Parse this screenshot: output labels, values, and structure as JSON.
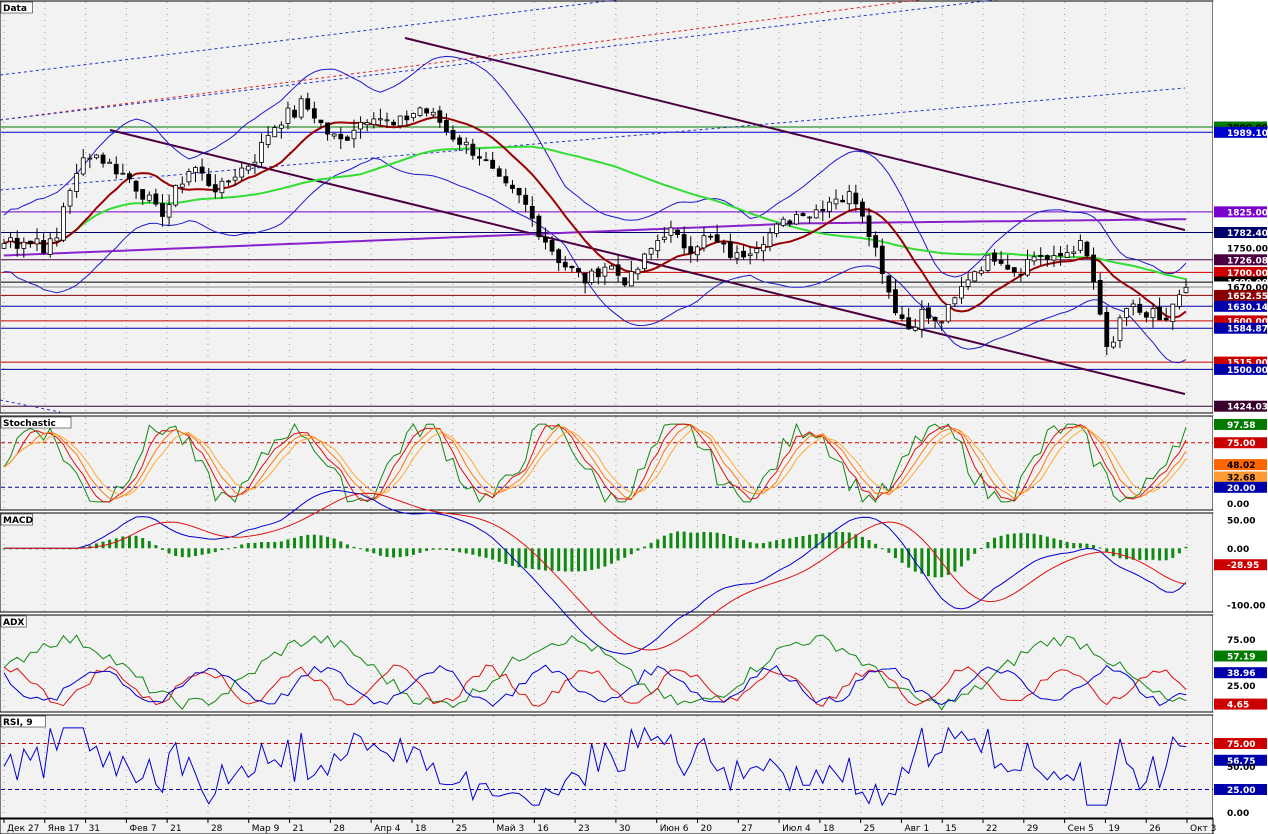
{
  "chart_data": {
    "type": "candlestick",
    "x_ticks": [
      "Дек 27",
      "Янв 17",
      "31",
      "Фев 7",
      "21",
      "28",
      "Мар 9",
      "21",
      "28",
      "Апр 4",
      "18",
      "25",
      "Май 3",
      "16",
      "23",
      "30",
      "Июн 6",
      "20",
      "27",
      "Июл 4",
      "18",
      "25",
      "Авг 1",
      "15",
      "22",
      "29",
      "Сен 5",
      "19",
      "26",
      "Окт 3"
    ],
    "panels": [
      {
        "name": "Data",
        "ylim": [
          1410,
          2260
        ],
        "price_labels": [
          {
            "text": "2000.00",
            "value": 2000,
            "bg": "#007a00",
            "fg": "#000000"
          },
          {
            "text": "1989.10",
            "value": 1989.1,
            "bg": "#0000cc",
            "fg": "#ffffff"
          },
          {
            "text": "1825.00",
            "value": 1825,
            "bg": "#7a00cc",
            "fg": "#ffffff"
          },
          {
            "text": "1782.40",
            "value": 1782.4,
            "bg": "#00006a",
            "fg": "#ffffff"
          },
          {
            "text": "1750.00",
            "value": 1750,
            "bg": "",
            "fg": "#000000"
          },
          {
            "text": "1726.08",
            "value": 1726.08,
            "bg": "#4a0040",
            "fg": "#ffffff"
          },
          {
            "text": "1700.00",
            "value": 1700,
            "bg": "#cc0000",
            "fg": "#ffffff"
          },
          {
            "text": "1680.00",
            "value": 1680,
            "bg": "#000000",
            "fg": "#ffffff"
          },
          {
            "text": "1670.00",
            "value": 1670,
            "bg": "#ffffff",
            "fg": "#000000"
          },
          {
            "text": "1652.55",
            "value": 1652.55,
            "bg": "#8a0000",
            "fg": "#ffffff"
          },
          {
            "text": "1630.14",
            "value": 1630.14,
            "bg": "#0000aa",
            "fg": "#ffffff"
          },
          {
            "text": "1600.00",
            "value": 1600,
            "bg": "#cc0000",
            "fg": "#ffffff"
          },
          {
            "text": "1584.87",
            "value": 1584.87,
            "bg": "#0000aa",
            "fg": "#ffffff"
          },
          {
            "text": "1515.00",
            "value": 1515,
            "bg": "#cc0000",
            "fg": "#ffffff"
          },
          {
            "text": "1500.00",
            "value": 1500,
            "bg": "#0000aa",
            "fg": "#ffffff"
          },
          {
            "text": "1424.03",
            "value": 1424.03,
            "bg": "#3a0030",
            "fg": "#ffffff"
          }
        ],
        "series_shape": {
          "close": [
            1760,
            1770,
            1760,
            1770,
            1760,
            1770,
            1750,
            1760,
            1770,
            1850,
            1880,
            1900,
            1940,
            1950,
            1940,
            1930,
            1920,
            1910,
            1900,
            1890,
            1870,
            1860,
            1840,
            1820,
            1830,
            1850,
            1880,
            1900,
            1920,
            1910,
            1890,
            1880,
            1870,
            1880,
            1900,
            1910,
            1920,
            1930,
            1950,
            1980,
            2000,
            2010,
            2030,
            2020,
            2050,
            2040,
            2030,
            2010,
            1990,
            1980,
            1970,
            1980,
            2000,
            2010,
            2020,
            2030,
            2020,
            2010,
            2000,
            2010,
            2020,
            2030,
            2040,
            2030,
            2020,
            2010,
            1990,
            1980,
            1970,
            1960,
            1950,
            1940,
            1920,
            1900,
            1880,
            1870,
            1860,
            1850,
            1830,
            1800,
            1780,
            1760,
            1740,
            1720,
            1710,
            1700,
            1690,
            1680,
            1700,
            1710,
            1720,
            1700,
            1690,
            1680,
            1700,
            1720,
            1740,
            1760,
            1780,
            1790,
            1770,
            1760,
            1750,
            1760,
            1770,
            1770,
            1760,
            1750,
            1740,
            1730,
            1740,
            1750,
            1760,
            1770,
            1780,
            1790,
            1800,
            1810,
            1820,
            1830,
            1820,
            1830,
            1840,
            1850,
            1860,
            1850,
            1860,
            1850,
            1820,
            1780,
            1740,
            1700,
            1650,
            1620,
            1600,
            1580,
            1610,
            1620,
            1600,
            1590,
            1610,
            1630,
            1650,
            1680,
            1700,
            1710,
            1720,
            1730,
            1740,
            1720,
            1710,
            1700,
            1720,
            1730,
            1740,
            1730,
            1720,
            1730,
            1740,
            1750,
            1760,
            1740,
            1700,
            1620,
            1540,
            1550,
            1590,
            1610,
            1640,
            1620,
            1600,
            1620,
            1590,
            1600,
            1620,
            1650,
            1660
          ]
        },
        "bands": {
          "width_frac": 0.055
        }
      },
      {
        "name": "Stochastic",
        "ylim": [
          -8,
          108
        ],
        "levels": [
          75,
          20
        ],
        "axis_ticks": [
          0
        ],
        "value_labels": [
          {
            "text": "97.58",
            "value": 97.58,
            "bg": "#007a00",
            "fg": "#ffffff"
          },
          {
            "text": "75.00",
            "value": 75,
            "bg": "#cc0000",
            "fg": "#ffffff"
          },
          {
            "text": "48.02",
            "value": 48.02,
            "bg": "#ff6600",
            "fg": "#000000"
          },
          {
            "text": "32.68",
            "value": 32.68,
            "bg": "#ff9933",
            "fg": "#000000"
          },
          {
            "text": "20.00",
            "value": 20,
            "bg": "#0000aa",
            "fg": "#ffffff"
          },
          {
            "text": "0.00",
            "value": 0,
            "bg": "",
            "fg": "#000000"
          }
        ],
        "series": [
          {
            "name": "",
            "color": "#118811"
          },
          {
            "name": "",
            "color": "#dd1111"
          },
          {
            "name": "",
            "color": "#ff7711"
          },
          {
            "name": "",
            "color": "#ffaa33"
          }
        ]
      },
      {
        "name": "MACD",
        "ylim": [
          -112,
          62
        ],
        "axis_ticks": [
          50,
          0,
          -100
        ],
        "value_labels": [
          {
            "text": "50.00",
            "value": 50,
            "bg": "",
            "fg": "#000000"
          },
          {
            "text": "0.00",
            "value": 0,
            "bg": "",
            "fg": "#000000"
          },
          {
            "text": "-28.95",
            "value": -28.95,
            "bg": "#cc0000",
            "fg": "#ffffff"
          },
          {
            "text": "-100.00",
            "value": -100,
            "bg": "",
            "fg": "#000000"
          }
        ],
        "series": [
          {
            "name": "",
            "color": "#0000cc"
          },
          {
            "name": "",
            "color": "#dd1111"
          },
          {
            "name": "",
            "color": "#118811"
          }
        ]
      },
      {
        "name": "ADX",
        "ylim": [
          -4,
          102
        ],
        "axis_ticks": [
          75,
          25
        ],
        "value_labels": [
          {
            "text": "75.00",
            "value": 75,
            "bg": "",
            "fg": "#000000"
          },
          {
            "text": "57.19",
            "value": 57.19,
            "bg": "#007a00",
            "fg": "#ffffff"
          },
          {
            "text": "38.96",
            "value": 38.96,
            "bg": "#0000aa",
            "fg": "#ffffff"
          },
          {
            "text": "25.00",
            "value": 25,
            "bg": "",
            "fg": "#000000"
          },
          {
            "text": "4.65",
            "value": 4.65,
            "bg": "#cc0000",
            "fg": "#ffffff"
          }
        ],
        "series": [
          {
            "name": "",
            "color": "#118811"
          },
          {
            "name": "",
            "color": "#dd1111"
          },
          {
            "name": "",
            "color": "#0000cc"
          }
        ]
      },
      {
        "name": "RSI, 9",
        "ylim": [
          -6,
          106
        ],
        "levels": [
          75,
          25
        ],
        "axis_ticks": [
          50,
          0
        ],
        "value_labels": [
          {
            "text": "75.00",
            "value": 75,
            "bg": "#cc0000",
            "fg": "#ffffff"
          },
          {
            "text": "56.75",
            "value": 56.75,
            "bg": "#0000aa",
            "fg": "#ffffff"
          },
          {
            "text": "50.00",
            "value": 50,
            "bg": "",
            "fg": "#000000"
          },
          {
            "text": "25.00",
            "value": 25,
            "bg": "#0000aa",
            "fg": "#ffffff"
          },
          {
            "text": "0.00",
            "value": 0,
            "bg": "",
            "fg": "#000000"
          }
        ],
        "series": [
          {
            "name": "",
            "color": "#0000cc"
          }
        ]
      }
    ]
  }
}
